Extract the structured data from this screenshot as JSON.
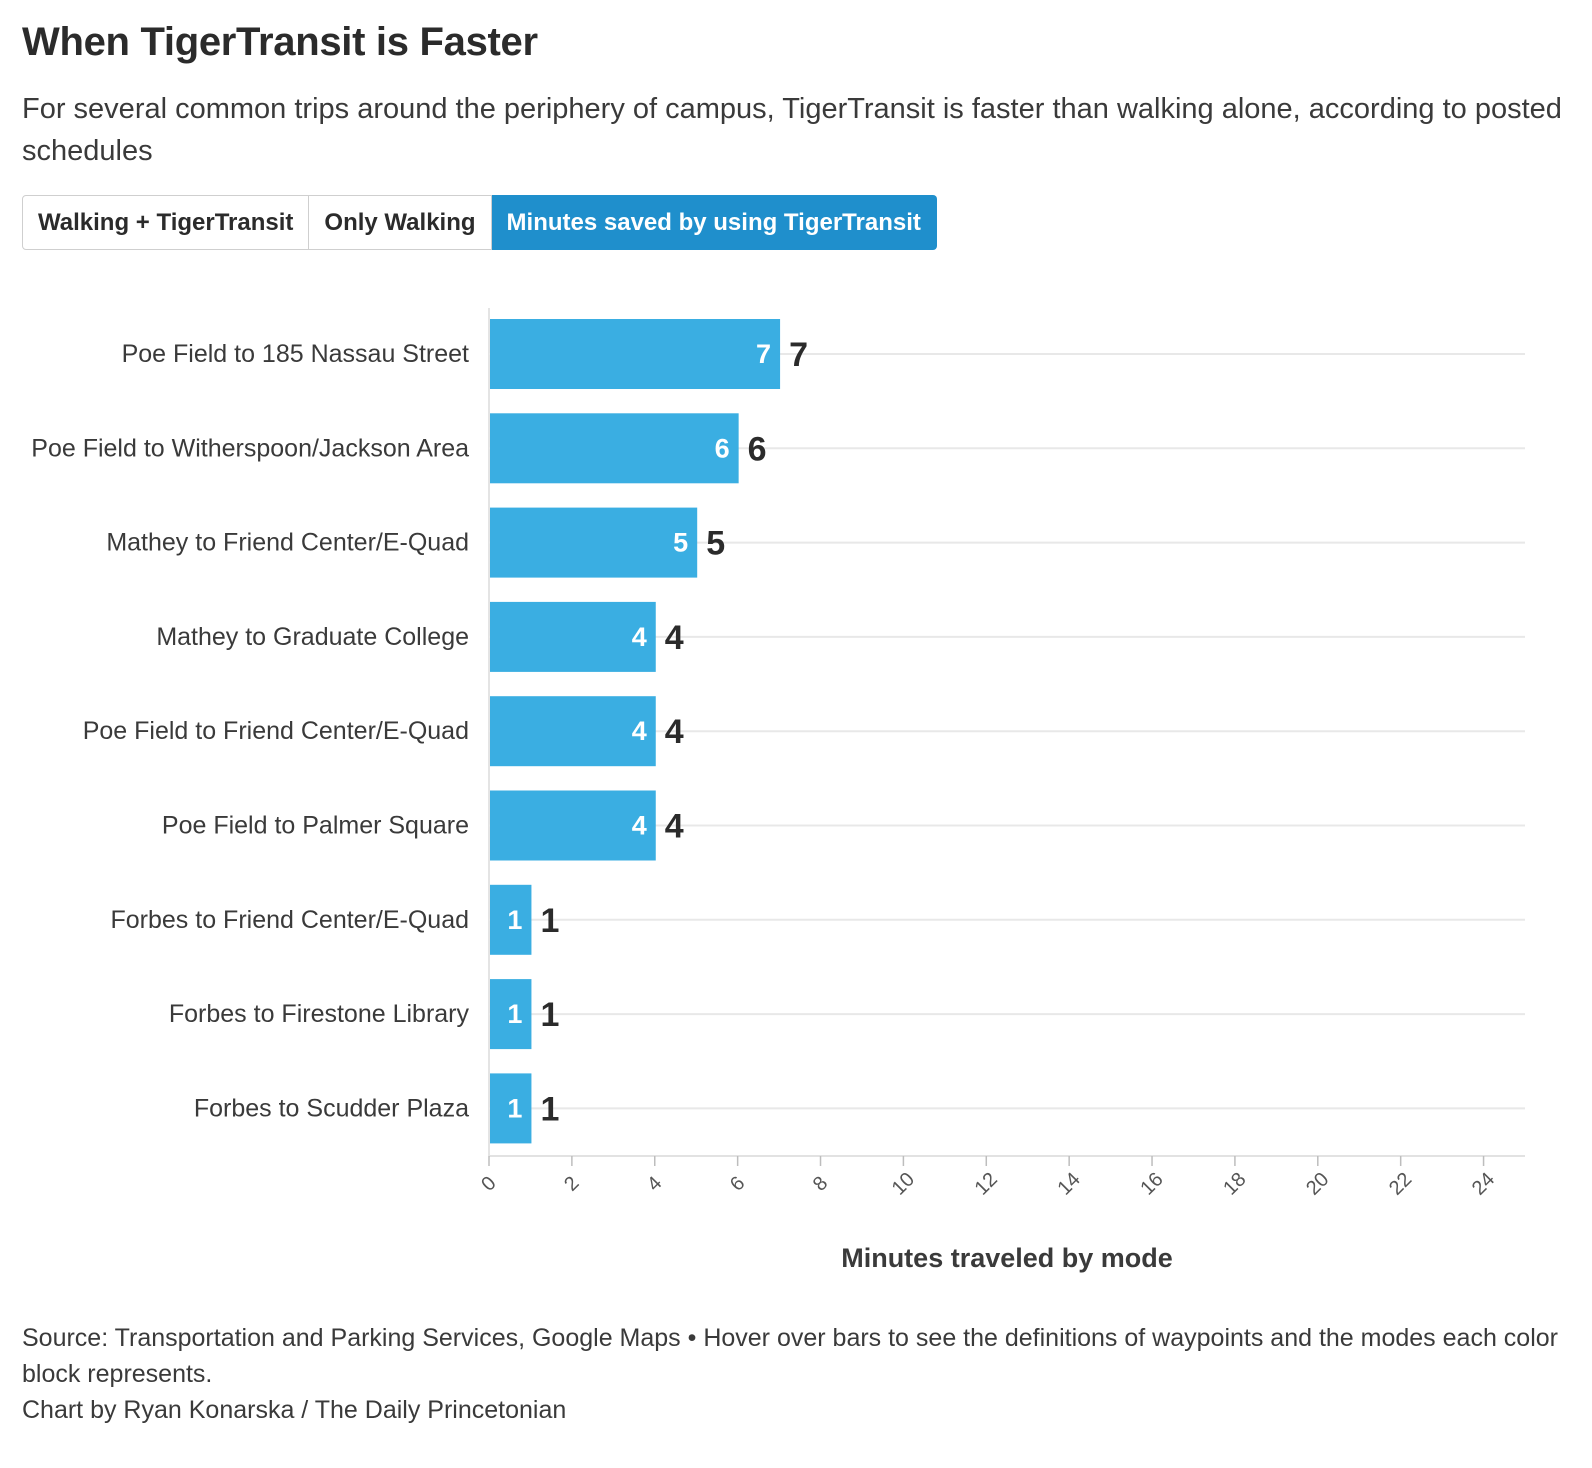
{
  "header": {
    "title": "When TigerTransit is Faster",
    "subtitle": "For several common trips around the periphery of campus, TigerTransit is faster than walking alone, according to posted schedules"
  },
  "tabs": [
    {
      "label": "Walking + TigerTransit",
      "active": false
    },
    {
      "label": "Only Walking",
      "active": false
    },
    {
      "label": "Minutes saved by using TigerTransit",
      "active": true
    }
  ],
  "colors": {
    "bar": "#3aaee2",
    "tab_active": "#1f8fcc",
    "gridline": "#e8e8e8"
  },
  "chart_data": {
    "type": "bar",
    "orientation": "horizontal",
    "categories": [
      "Poe Field to 185 Nassau Street",
      "Poe Field to Witherspoon/Jackson Area",
      "Mathey to Friend Center/E-Quad",
      "Mathey to Graduate College",
      "Poe Field to Friend Center/E-Quad",
      "Poe Field to Palmer Square",
      "Forbes to Friend Center/E-Quad",
      "Forbes to Firestone Library",
      "Forbes to Scudder Plaza"
    ],
    "values": [
      7,
      6,
      5,
      4,
      4,
      4,
      1,
      1,
      1
    ],
    "xlabel": "Minutes traveled by mode",
    "ylabel": "",
    "xlim": [
      0,
      25
    ],
    "xticks": [
      0,
      2,
      4,
      6,
      8,
      10,
      12,
      14,
      16,
      18,
      20,
      22,
      24
    ],
    "grid": true,
    "data_labels": "inside and outside bar end"
  },
  "footer": {
    "source": "Source: Transportation and Parking Services, Google Maps • Hover over bars to see the definitions of waypoints and the modes each color block represents.",
    "credit": "Chart by Ryan Konarska / The Daily Princetonian"
  }
}
